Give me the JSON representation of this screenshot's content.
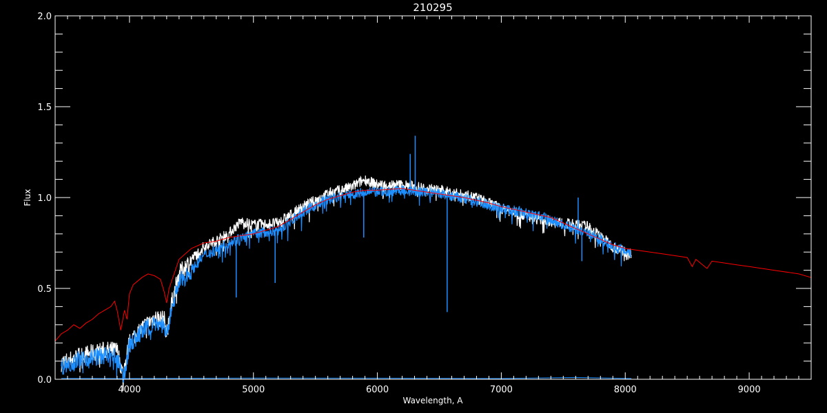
{
  "chart_data": {
    "type": "line",
    "title": "210295",
    "xlabel": "Wavelength, A",
    "ylabel": "Flux",
    "xlim": [
      3400,
      9500
    ],
    "ylim": [
      0,
      2.0
    ],
    "x_ticks": [
      4000,
      5000,
      6000,
      7000,
      8000,
      9000
    ],
    "x_tick_labels": [
      "4000",
      "5000",
      "6000",
      "7000",
      "8000",
      "9000"
    ],
    "y_ticks": [
      0,
      0.5,
      1.0,
      1.5,
      2.0
    ],
    "y_tick_labels": [
      "0.0",
      "0.5",
      "1.0",
      "1.5",
      "2.0"
    ],
    "grid": false,
    "background": "#000000",
    "series": [
      {
        "color": "#ffffff",
        "points": [
          [
            3450,
            0.09
          ],
          [
            3600,
            0.13
          ],
          [
            3800,
            0.16
          ],
          [
            3900,
            0.16
          ],
          [
            3950,
            0.02
          ],
          [
            4000,
            0.21
          ],
          [
            4100,
            0.28
          ],
          [
            4200,
            0.34
          ],
          [
            4280,
            0.33
          ],
          [
            4300,
            0.25
          ],
          [
            4340,
            0.42
          ],
          [
            4400,
            0.58
          ],
          [
            4500,
            0.66
          ],
          [
            4600,
            0.73
          ],
          [
            4800,
            0.8
          ],
          [
            4900,
            0.87
          ],
          [
            5000,
            0.85
          ],
          [
            5200,
            0.86
          ],
          [
            5400,
            0.95
          ],
          [
            5600,
            1.02
          ],
          [
            5800,
            1.06
          ],
          [
            5900,
            1.1
          ],
          [
            6000,
            1.07
          ],
          [
            6200,
            1.07
          ],
          [
            6500,
            1.04
          ],
          [
            6800,
            1.0
          ],
          [
            7000,
            0.94
          ],
          [
            7300,
            0.88
          ],
          [
            7500,
            0.86
          ],
          [
            7700,
            0.84
          ],
          [
            7800,
            0.79
          ],
          [
            7900,
            0.73
          ],
          [
            8050,
            0.69
          ]
        ]
      },
      {
        "color": "#1e8fff",
        "points": [
          [
            3450,
            0.07
          ],
          [
            3600,
            0.11
          ],
          [
            3800,
            0.13
          ],
          [
            3900,
            0.12
          ],
          [
            3950,
            0.0
          ],
          [
            4000,
            0.19
          ],
          [
            4100,
            0.26
          ],
          [
            4200,
            0.31
          ],
          [
            4280,
            0.3
          ],
          [
            4300,
            0.22
          ],
          [
            4340,
            0.4
          ],
          [
            4400,
            0.53
          ],
          [
            4500,
            0.6
          ],
          [
            4600,
            0.68
          ],
          [
            4800,
            0.75
          ],
          [
            5000,
            0.8
          ],
          [
            5200,
            0.82
          ],
          [
            5400,
            0.92
          ],
          [
            5600,
            0.99
          ],
          [
            5800,
            1.02
          ],
          [
            6000,
            1.03
          ],
          [
            6200,
            1.04
          ],
          [
            6500,
            1.02
          ],
          [
            6800,
            0.98
          ],
          [
            7000,
            0.94
          ],
          [
            7300,
            0.9
          ],
          [
            7500,
            0.85
          ],
          [
            7700,
            0.81
          ],
          [
            7800,
            0.77
          ],
          [
            7900,
            0.73
          ],
          [
            8050,
            0.7
          ]
        ],
        "lines": [
          [
            4861,
            0.45
          ],
          [
            5175,
            0.53
          ],
          [
            5890,
            0.78
          ],
          [
            6563,
            0.37
          ],
          [
            7650,
            0.65
          ]
        ],
        "spikes": [
          [
            6265,
            1.24
          ],
          [
            6305,
            1.34
          ],
          [
            7620,
            1.0
          ]
        ]
      },
      {
        "color": "#1e8fff",
        "points": [
          [
            3450,
            0.005
          ],
          [
            4000,
            0.004
          ],
          [
            5000,
            0.007
          ],
          [
            6000,
            0.006
          ],
          [
            7000,
            0.004
          ],
          [
            7600,
            0.01
          ],
          [
            8050,
            0.004
          ]
        ]
      },
      {
        "color": "#ff0000",
        "points": [
          [
            3400,
            0.21
          ],
          [
            3450,
            0.25
          ],
          [
            3500,
            0.27
          ],
          [
            3550,
            0.3
          ],
          [
            3600,
            0.28
          ],
          [
            3650,
            0.31
          ],
          [
            3700,
            0.33
          ],
          [
            3750,
            0.36
          ],
          [
            3800,
            0.38
          ],
          [
            3850,
            0.4
          ],
          [
            3880,
            0.43
          ],
          [
            3900,
            0.38
          ],
          [
            3930,
            0.27
          ],
          [
            3960,
            0.38
          ],
          [
            3980,
            0.33
          ],
          [
            4000,
            0.47
          ],
          [
            4030,
            0.52
          ],
          [
            4100,
            0.56
          ],
          [
            4150,
            0.58
          ],
          [
            4200,
            0.57
          ],
          [
            4250,
            0.55
          ],
          [
            4280,
            0.48
          ],
          [
            4300,
            0.42
          ],
          [
            4320,
            0.5
          ],
          [
            4400,
            0.66
          ],
          [
            4500,
            0.72
          ],
          [
            4600,
            0.75
          ],
          [
            4700,
            0.76
          ],
          [
            4800,
            0.78
          ],
          [
            4900,
            0.79
          ],
          [
            5000,
            0.8
          ],
          [
            5100,
            0.82
          ],
          [
            5200,
            0.84
          ],
          [
            5300,
            0.88
          ],
          [
            5400,
            0.92
          ],
          [
            5500,
            0.96
          ],
          [
            5600,
            0.99
          ],
          [
            5700,
            1.01
          ],
          [
            5800,
            1.03
          ],
          [
            5900,
            1.04
          ],
          [
            6000,
            1.04
          ],
          [
            6200,
            1.05
          ],
          [
            6400,
            1.03
          ],
          [
            6500,
            1.02
          ],
          [
            6700,
            1.0
          ],
          [
            6900,
            0.97
          ],
          [
            7000,
            0.95
          ],
          [
            7200,
            0.92
          ],
          [
            7400,
            0.89
          ],
          [
            7500,
            0.86
          ],
          [
            7600,
            0.83
          ],
          [
            7700,
            0.8
          ],
          [
            7800,
            0.77
          ],
          [
            7900,
            0.74
          ],
          [
            8000,
            0.72
          ],
          [
            8100,
            0.71
          ],
          [
            8300,
            0.69
          ],
          [
            8500,
            0.67
          ],
          [
            8540,
            0.62
          ],
          [
            8570,
            0.66
          ],
          [
            8660,
            0.61
          ],
          [
            8700,
            0.65
          ],
          [
            8900,
            0.63
          ],
          [
            9000,
            0.62
          ],
          [
            9200,
            0.6
          ],
          [
            9400,
            0.58
          ],
          [
            9500,
            0.56
          ]
        ]
      }
    ]
  }
}
